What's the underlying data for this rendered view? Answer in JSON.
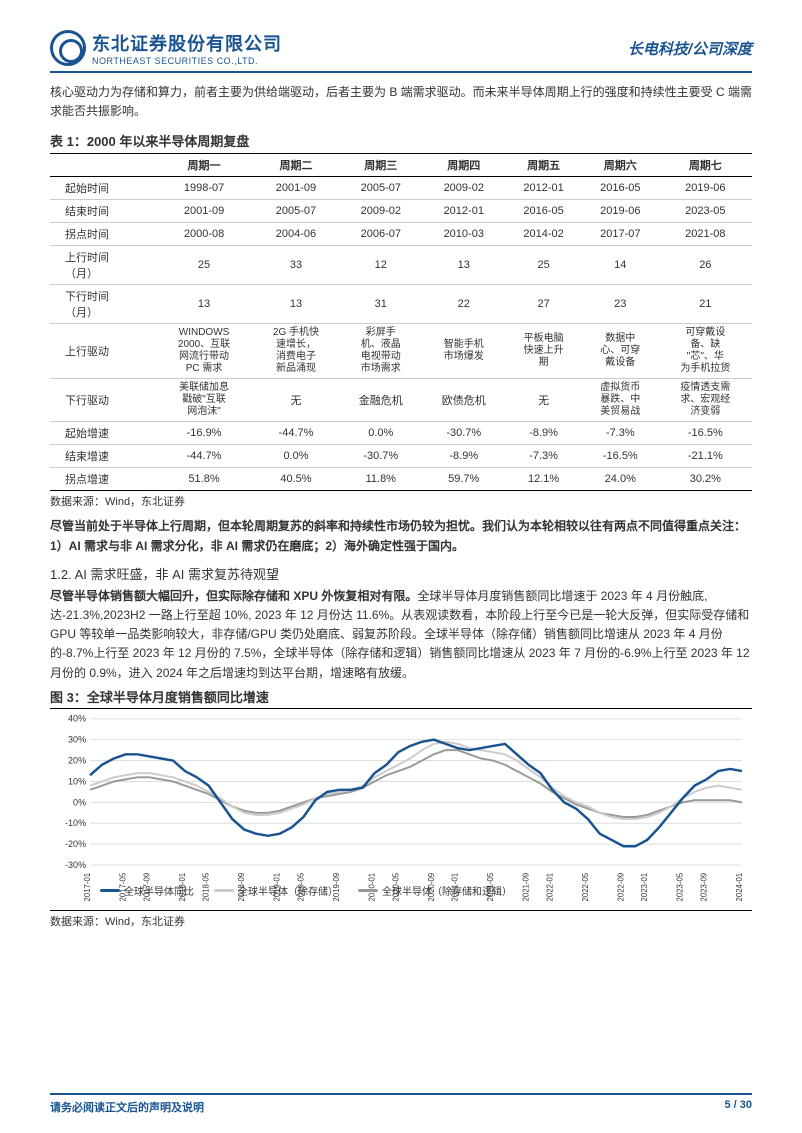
{
  "header": {
    "company_cn": "东北证券股份有限公司",
    "company_en": "NORTHEAST SECURITIES CO.,LTD.",
    "report_type": "长电科技/公司深度"
  },
  "intro": "核心驱动力为存储和算力，前者主要为供给端驱动，后者主要为 B 端需求驱动。而未来半导体周期上行的强度和持续性主要受 C 端需求能否共振影响。",
  "table1": {
    "title": "表 1：2000 年以来半导体周期复盘",
    "headers": [
      "",
      "周期一",
      "周期二",
      "周期三",
      "周期四",
      "周期五",
      "周期六",
      "周期七"
    ],
    "rows": [
      {
        "label": "起始时间",
        "cells": [
          "1998-07",
          "2001-09",
          "2005-07",
          "2009-02",
          "2012-01",
          "2016-05",
          "2019-06"
        ]
      },
      {
        "label": "结束时间",
        "cells": [
          "2001-09",
          "2005-07",
          "2009-02",
          "2012-01",
          "2016-05",
          "2019-06",
          "2023-05"
        ]
      },
      {
        "label": "拐点时间",
        "cells": [
          "2000-08",
          "2004-06",
          "2006-07",
          "2010-03",
          "2014-02",
          "2017-07",
          "2021-08"
        ]
      },
      {
        "label": "上行时间\n（月）",
        "cells": [
          "25",
          "33",
          "12",
          "13",
          "25",
          "14",
          "26"
        ]
      },
      {
        "label": "下行时间\n（月）",
        "cells": [
          "13",
          "13",
          "31",
          "22",
          "27",
          "23",
          "21"
        ]
      },
      {
        "label": "上行驱动",
        "cells": [
          "WINDOWS\n2000、互联\n网流行带动\nPC 需求",
          "2G 手机快\n速增长，\n消费电子\n新品涌现",
          "彩屏手\n机、液晶\n电视带动\n市场需求",
          "智能手机\n市场爆发",
          "平板电脑\n快速上升\n期",
          "数据中\n心、可穿\n戴设备",
          "可穿戴设\n备、缺\n\"芯\"、华\n为手机拉货"
        ]
      },
      {
        "label": "下行驱动",
        "cells": [
          "美联储加息\n戳破\"互联\n网泡沫\"",
          "无",
          "金融危机",
          "欧债危机",
          "无",
          "虚拟货币\n暴跌、中\n美贸易战",
          "疫情透支需\n求、宏观经\n济变弱"
        ]
      },
      {
        "label": "起始增速",
        "cells": [
          "-16.9%",
          "-44.7%",
          "0.0%",
          "-30.7%",
          "-8.9%",
          "-7.3%",
          "-16.5%"
        ]
      },
      {
        "label": "结束增速",
        "cells": [
          "-44.7%",
          "0.0%",
          "-30.7%",
          "-8.9%",
          "-7.3%",
          "-16.5%",
          "-21.1%"
        ]
      },
      {
        "label": "拐点增速",
        "cells": [
          "51.8%",
          "40.5%",
          "11.8%",
          "59.7%",
          "12.1%",
          "24.0%",
          "30.2%"
        ]
      }
    ],
    "source": "数据来源：Wind，东北证券"
  },
  "bold_para": "尽管当前处于半导体上行周期，但本轮周期复苏的斜率和持续性市场仍较为担忧。我们认为本轮相较以往有两点不同值得重点关注：1）AI 需求与非 AI 需求分化，非 AI 需求仍在磨底；2）海外确定性强于国内。",
  "section_1_2": {
    "title": "1.2.  AI 需求旺盛，非 AI 需求复苏待观望",
    "lead": "尽管半导体销售额大幅回升，但实际除存储和 XPU 外恢复相对有限。",
    "body": "全球半导体月度销售额同比增速于 2023 年 4 月份触底, 达-21.3%,2023H2 一路上行至超 10%, 2023 年 12 月份达 11.6%。从表观读数看，本阶段上行至今已是一轮大反弹，但实际受存储和 GPU 等较单一品类影响较大，非存储/GPU 类仍处磨底、弱复苏阶段。全球半导体（除存储）销售额同比增速从 2023 年 4 月份的-8.7%上行至 2023 年 12 月份的 7.5%，全球半导体（除存储和逻辑）销售额同比增速从 2023 年 7 月份的-6.9%上行至 2023 年 12 月份的 0.9%，进入 2024 年之后增速均到达平台期，增速略有放缓。"
  },
  "chart3": {
    "title": "图 3：全球半导体月度销售额同比增速",
    "ylim": [
      -30,
      40
    ],
    "ytick_step": 10,
    "ytick_labels": [
      "-30%",
      "-20%",
      "-10%",
      "0%",
      "10%",
      "20%",
      "30%",
      "40%"
    ],
    "grid_color": "#dddddd",
    "background": "#ffffff",
    "xlabels": [
      "2017-01",
      "2017-05",
      "2017-09",
      "2018-01",
      "2018-05",
      "2018-09",
      "2019-01",
      "2019-05",
      "2019-09",
      "2020-01",
      "2020-05",
      "2020-09",
      "2021-01",
      "2021-05",
      "2021-09",
      "2022-01",
      "2022-05",
      "2022-09",
      "2023-01",
      "2023-05",
      "2023-09",
      "2024-01"
    ],
    "series": [
      {
        "name": "全球半导体同比",
        "color": "#1a5490",
        "width": 2.5,
        "values": [
          13,
          18,
          21,
          23,
          23,
          22,
          21,
          20,
          15,
          12,
          8,
          0,
          -8,
          -13,
          -15,
          -16,
          -15,
          -12,
          -7,
          1,
          5,
          6,
          6,
          7,
          14,
          18,
          24,
          27,
          29,
          30,
          28,
          26,
          25,
          26,
          27,
          28,
          23,
          18,
          14,
          6,
          0,
          -3,
          -8,
          -15,
          -18,
          -21,
          -21,
          -18,
          -12,
          -5,
          2,
          8,
          11,
          15,
          16,
          15
        ]
      },
      {
        "name": "全球半导体（除存储）",
        "color": "#cccccc",
        "width": 2,
        "values": [
          8,
          10,
          12,
          13,
          14,
          14,
          13,
          12,
          10,
          8,
          5,
          2,
          -2,
          -5,
          -6,
          -6,
          -5,
          -3,
          -1,
          2,
          4,
          5,
          6,
          8,
          12,
          15,
          18,
          21,
          25,
          28,
          29,
          28,
          26,
          25,
          24,
          23,
          20,
          16,
          12,
          7,
          3,
          0,
          -2,
          -5,
          -7,
          -8,
          -8,
          -7,
          -5,
          -2,
          2,
          5,
          7,
          8,
          7,
          6
        ]
      },
      {
        "name": "全球半导体（除存储和逻辑）",
        "color": "#999999",
        "width": 2,
        "values": [
          6,
          8,
          10,
          11,
          12,
          12,
          11,
          10,
          8,
          6,
          4,
          1,
          -2,
          -4,
          -5,
          -5,
          -4,
          -2,
          0,
          2,
          3,
          4,
          5,
          7,
          10,
          13,
          15,
          17,
          20,
          23,
          25,
          25,
          23,
          21,
          20,
          18,
          15,
          12,
          9,
          5,
          2,
          -1,
          -3,
          -5,
          -6,
          -7,
          -7,
          -6,
          -4,
          -2,
          0,
          1,
          1,
          1,
          1,
          0
        ]
      }
    ],
    "source": "数据来源：Wind，东北证券"
  },
  "footer": {
    "disclaimer": "请务必阅读正文后的声明及说明",
    "page": "5 / 30"
  }
}
